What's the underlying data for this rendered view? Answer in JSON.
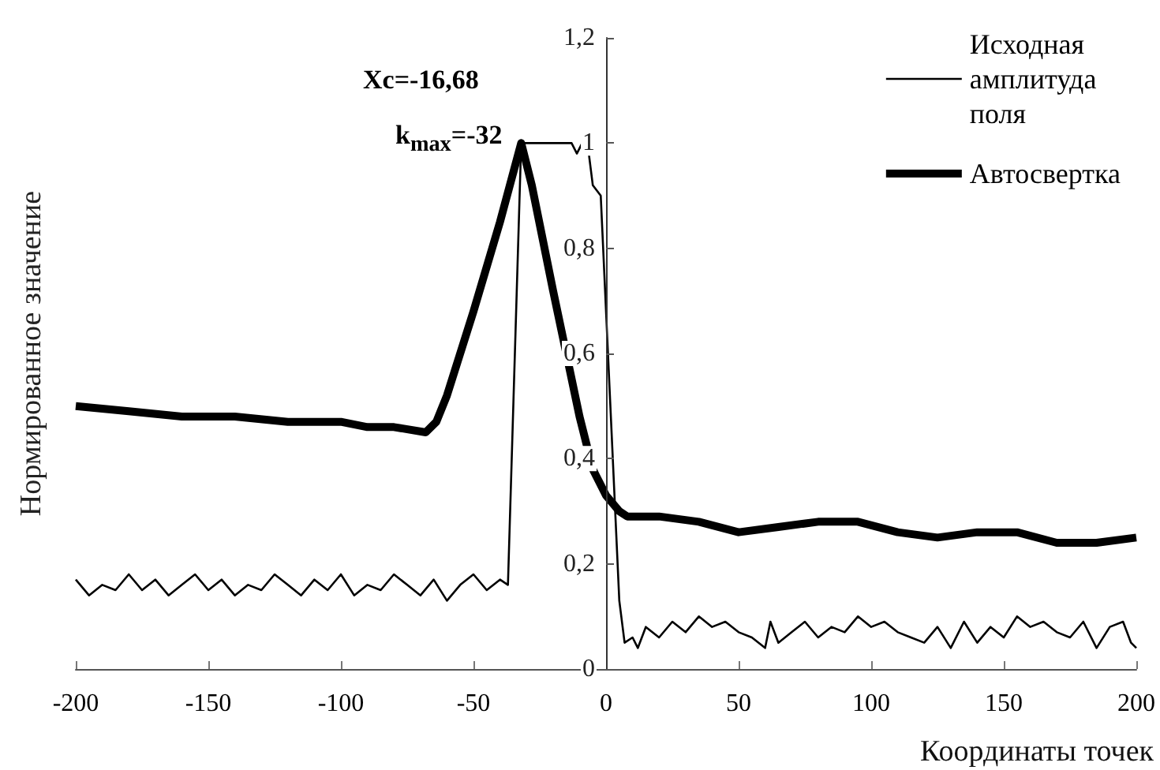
{
  "chart_data": {
    "type": "line",
    "xlabel": "Координаты точек",
    "ylabel": "Нормированное значение",
    "xlim": [
      -200,
      200
    ],
    "xticks": [
      -200,
      -150,
      -100,
      -50,
      0,
      50,
      100,
      150,
      200
    ],
    "ylim": [
      0,
      1.2
    ],
    "yticks": [
      0,
      {
        "value": 0.2,
        "label": "0,2"
      },
      {
        "value": 0.4,
        "label": "0,4"
      },
      {
        "value": 0.6,
        "label": "0,6"
      },
      {
        "value": 0.8,
        "label": "0,8"
      },
      1,
      {
        "value": 1.2,
        "label": "1,2"
      }
    ],
    "grid": false,
    "legend": "top right",
    "marker": "none",
    "line_style": "solid",
    "annotations": [
      "Xc=-16,68",
      {
        "text": "k$_{max}$=-32",
        "x": -32,
        "y": 1
      }
    ],
    "series": [
      {
        "name": "Исходная амплитуда поля",
        "color": "#000000",
        "x": [
          -200,
          -195,
          -190,
          -185,
          -180,
          -175,
          -170,
          -165,
          -160,
          -155,
          -150,
          -145,
          -140,
          -135,
          -130,
          -125,
          -120,
          -115,
          -110,
          -105,
          -100,
          -95,
          -90,
          -85,
          -80,
          -75,
          -70,
          -65,
          -60,
          -55,
          -50,
          -45,
          -40,
          -37,
          -32,
          -20,
          -13,
          -11,
          -9,
          -7,
          -5,
          -2,
          5,
          7,
          10,
          12,
          15,
          20,
          25,
          30,
          35,
          40,
          45,
          50,
          55,
          60,
          62,
          65,
          70,
          75,
          80,
          85,
          90,
          95,
          100,
          105,
          110,
          115,
          120,
          125,
          130,
          135,
          140,
          145,
          150,
          155,
          160,
          165,
          170,
          175,
          180,
          185,
          190,
          195,
          198,
          200
        ],
        "values": [
          0.17,
          0.14,
          0.16,
          0.15,
          0.18,
          0.15,
          0.17,
          0.14,
          0.16,
          0.18,
          0.15,
          0.17,
          0.14,
          0.16,
          0.15,
          0.18,
          0.16,
          0.14,
          0.17,
          0.15,
          0.18,
          0.14,
          0.16,
          0.15,
          0.18,
          0.16,
          0.14,
          0.17,
          0.13,
          0.16,
          0.18,
          0.15,
          0.17,
          0.16,
          1,
          1,
          1,
          0.98,
          1,
          1,
          0.92,
          0.9,
          0.13,
          0.05,
          0.06,
          0.04,
          0.08,
          0.06,
          0.09,
          0.07,
          0.1,
          0.08,
          0.09,
          0.07,
          0.06,
          0.04,
          0.09,
          0.05,
          0.07,
          0.09,
          0.06,
          0.08,
          0.07,
          0.1,
          0.08,
          0.09,
          0.07,
          0.06,
          0.05,
          0.08,
          0.04,
          0.09,
          0.05,
          0.08,
          0.06,
          0.1,
          0.08,
          0.09,
          0.07,
          0.06,
          0.09,
          0.04,
          0.08,
          0.09,
          0.05,
          0.04
        ]
      },
      {
        "name": "Автосвертка",
        "color": "#000000",
        "x": [
          -200,
          -180,
          -160,
          -140,
          -120,
          -100,
          -90,
          -80,
          -68,
          -64,
          -60,
          -50,
          -40,
          -32,
          -28,
          -20,
          -15,
          -10,
          -5,
          0,
          5,
          8,
          20,
          35,
          50,
          65,
          80,
          95,
          110,
          125,
          140,
          155,
          170,
          185,
          200
        ],
        "values": [
          0.5,
          0.49,
          0.48,
          0.48,
          0.47,
          0.47,
          0.46,
          0.46,
          0.45,
          0.47,
          0.52,
          0.68,
          0.85,
          1,
          0.92,
          0.72,
          0.6,
          0.48,
          0.38,
          0.33,
          0.3,
          0.29,
          0.29,
          0.28,
          0.26,
          0.27,
          0.28,
          0.28,
          0.26,
          0.25,
          0.26,
          0.26,
          0.24,
          0.24,
          0.25
        ]
      }
    ]
  }
}
